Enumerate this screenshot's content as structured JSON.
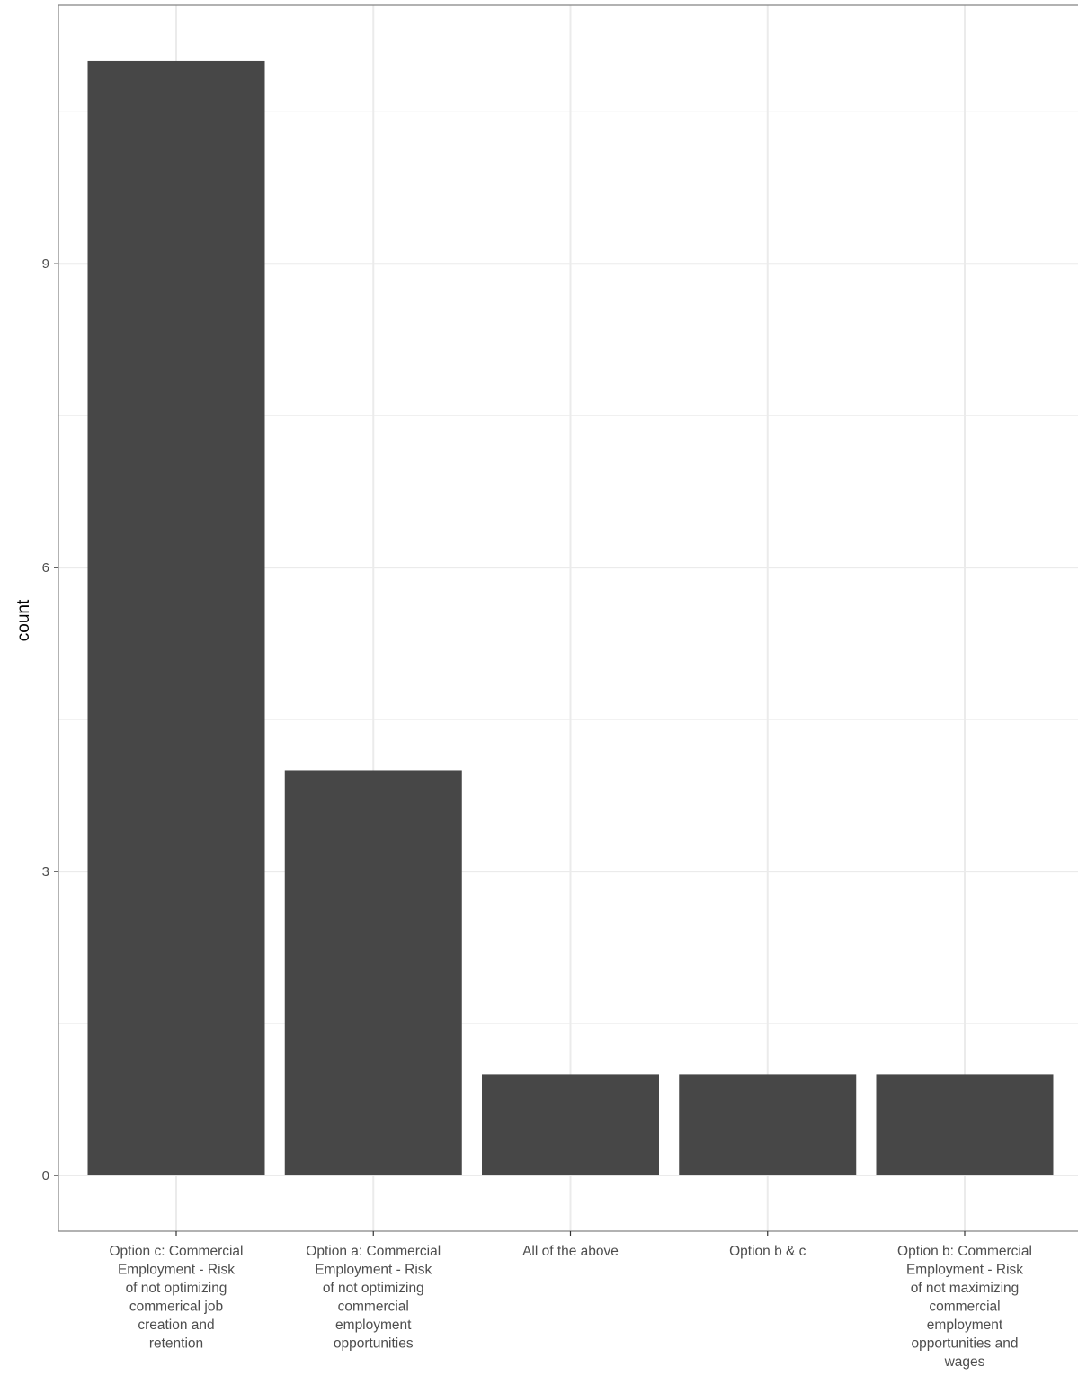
{
  "chart_data": {
    "type": "bar",
    "categories": [
      "Option c: Commercial Employment - Risk of not optimizing commerical job creation and retention",
      "Option a: Commercial Employment - Risk of not optimizing commercial employment opportunities",
      "All of the above",
      "Option b & c",
      "Option b: Commercial Employment - Risk of not maximizing commercial employment opportunities and wages"
    ],
    "category_label_lines": [
      [
        "Option c: Commercial",
        "Employment - Risk",
        "of not optimizing",
        "commerical job",
        "creation and",
        "retention"
      ],
      [
        "Option a: Commercial",
        "Employment - Risk",
        "of not optimizing",
        "commercial",
        "employment",
        "opportunities"
      ],
      [
        "All of the above"
      ],
      [
        "Option b & c"
      ],
      [
        "Option b: Commercial",
        "Employment - Risk",
        "of not maximizing",
        "commercial",
        "employment",
        "opportunities and",
        "wages"
      ]
    ],
    "values": [
      11,
      4,
      1,
      1,
      1
    ],
    "xlabel": "",
    "ylabel": "count",
    "ylim": [
      -0.55,
      11.55
    ],
    "yticks": [
      0,
      3,
      6,
      9
    ],
    "ytick_labels": [
      "0",
      "3",
      "6",
      "9"
    ],
    "grid": true,
    "legend": "none",
    "bar_color": "#474747",
    "grid_color": "#ebebeb",
    "panel_border_color": "#7f7f7f"
  }
}
